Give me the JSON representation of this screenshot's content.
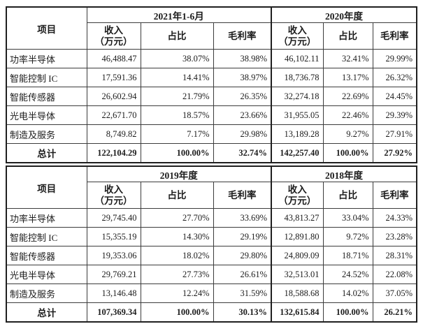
{
  "page": {
    "background": "#ffffff",
    "text_color": "#1c1c1c",
    "border_color": "#1f1f1f"
  },
  "tables": [
    {
      "item_header": "项目",
      "periods": [
        "2021年1-6月",
        "2020年度"
      ],
      "sub_headers": {
        "income_line1": "收入",
        "income_line2": "（万元）",
        "share": "占比",
        "margin": "毛利率"
      },
      "rows": [
        {
          "label": "功率半导体",
          "cells": [
            "46,488.47",
            "38.07%",
            "38.98%",
            "46,102.11",
            "32.41%",
            "29.99%"
          ]
        },
        {
          "label": "智能控制 IC",
          "cells": [
            "17,591.36",
            "14.41%",
            "38.97%",
            "18,736.78",
            "13.17%",
            "26.32%"
          ]
        },
        {
          "label": "智能传感器",
          "cells": [
            "26,602.94",
            "21.79%",
            "26.35%",
            "32,274.18",
            "22.69%",
            "24.45%"
          ]
        },
        {
          "label": "光电半导体",
          "cells": [
            "22,671.70",
            "18.57%",
            "23.66%",
            "31,955.05",
            "22.46%",
            "29.39%"
          ]
        },
        {
          "label": "制造及服务",
          "cells": [
            "8,749.82",
            "7.17%",
            "29.98%",
            "13,189.28",
            "9.27%",
            "27.91%"
          ]
        }
      ],
      "total": {
        "label": "总计",
        "cells": [
          "122,104.29",
          "100.00%",
          "32.74%",
          "142,257.40",
          "100.00%",
          "27.92%"
        ]
      }
    },
    {
      "item_header": "项目",
      "periods": [
        "2019年度",
        "2018年度"
      ],
      "sub_headers": {
        "income_line1": "收入",
        "income_line2": "（万元）",
        "share": "占比",
        "margin": "毛利率"
      },
      "rows": [
        {
          "label": "功率半导体",
          "cells": [
            "29,745.40",
            "27.70%",
            "33.69%",
            "43,813.27",
            "33.04%",
            "24.33%"
          ]
        },
        {
          "label": "智能控制 IC",
          "cells": [
            "15,355.19",
            "14.30%",
            "29.19%",
            "12,891.80",
            "9.72%",
            "23.28%"
          ]
        },
        {
          "label": "智能传感器",
          "cells": [
            "19,353.06",
            "18.02%",
            "29.80%",
            "24,809.09",
            "18.71%",
            "28.31%"
          ]
        },
        {
          "label": "光电半导体",
          "cells": [
            "29,769.21",
            "27.73%",
            "26.61%",
            "32,513.01",
            "24.52%",
            "22.08%"
          ]
        },
        {
          "label": "制造及服务",
          "cells": [
            "13,146.48",
            "12.24%",
            "31.59%",
            "18,588.68",
            "14.02%",
            "37.05%"
          ]
        }
      ],
      "total": {
        "label": "总计",
        "cells": [
          "107,369.34",
          "100.00%",
          "30.13%",
          "132,615.84",
          "100.00%",
          "26.21%"
        ]
      }
    }
  ]
}
